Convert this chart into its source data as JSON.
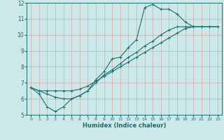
{
  "xlabel": "Humidex (Indice chaleur)",
  "bg_color": "#cce8e8",
  "line_color": "#1a6e6e",
  "grid_color": "#c0d8d8",
  "xlim": [
    -0.5,
    23.5
  ],
  "ylim": [
    5,
    12
  ],
  "xticks": [
    0,
    1,
    2,
    3,
    4,
    5,
    6,
    7,
    8,
    9,
    10,
    11,
    12,
    13,
    14,
    15,
    16,
    17,
    18,
    19,
    20,
    21,
    22,
    23
  ],
  "yticks": [
    5,
    6,
    7,
    8,
    9,
    10,
    11,
    12
  ],
  "line1_x": [
    0,
    1,
    2,
    3,
    4,
    5,
    6,
    7,
    8,
    9,
    10,
    11,
    12,
    13,
    14,
    15,
    16,
    17,
    18,
    19,
    20,
    21,
    22,
    23
  ],
  "line1_y": [
    6.7,
    6.3,
    5.5,
    5.2,
    5.5,
    6.0,
    6.2,
    6.5,
    7.2,
    7.7,
    8.5,
    8.6,
    9.2,
    9.7,
    11.7,
    11.9,
    11.6,
    11.6,
    11.3,
    10.8,
    10.5,
    10.5,
    10.5,
    10.5
  ],
  "line2_x": [
    0,
    1,
    2,
    3,
    4,
    5,
    6,
    7,
    8,
    9,
    10,
    11,
    12,
    13,
    14,
    15,
    16,
    17,
    18,
    19,
    20,
    21,
    22,
    23
  ],
  "line2_y": [
    6.7,
    6.5,
    6.3,
    6.1,
    6.0,
    6.0,
    6.2,
    6.5,
    7.0,
    7.5,
    7.8,
    8.2,
    8.6,
    8.9,
    9.3,
    9.6,
    10.0,
    10.3,
    10.5,
    10.5,
    10.5,
    10.5,
    10.5,
    10.5
  ],
  "line3_x": [
    0,
    1,
    2,
    3,
    4,
    5,
    6,
    7,
    8,
    9,
    10,
    11,
    12,
    13,
    14,
    15,
    16,
    17,
    18,
    19,
    20,
    21,
    22,
    23
  ],
  "line3_y": [
    6.7,
    6.5,
    6.5,
    6.5,
    6.5,
    6.5,
    6.6,
    6.8,
    7.1,
    7.4,
    7.7,
    8.0,
    8.3,
    8.6,
    8.9,
    9.2,
    9.5,
    9.8,
    10.1,
    10.4,
    10.5,
    10.5,
    10.5,
    10.5
  ]
}
